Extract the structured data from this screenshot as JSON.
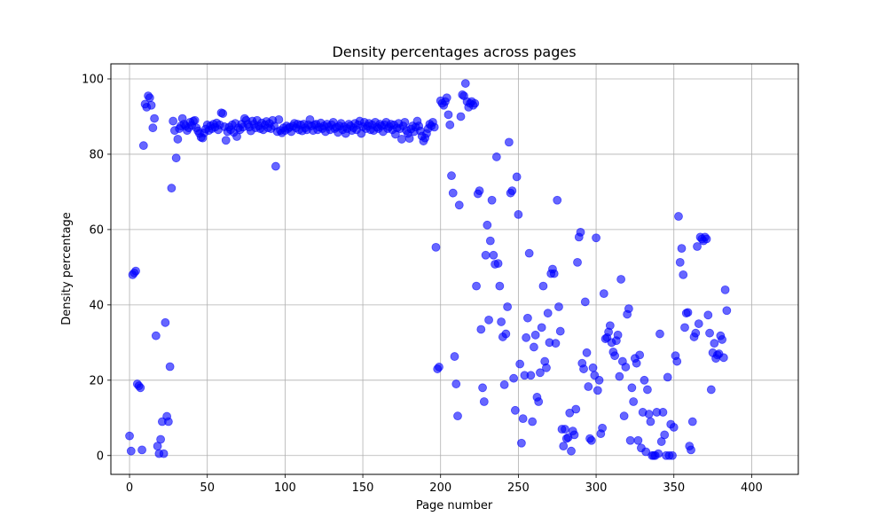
{
  "chart_data": {
    "type": "scatter",
    "title": "Density percentages across pages",
    "xlabel": "Page number",
    "ylabel": "Density percentage",
    "xlim": [
      -12,
      430
    ],
    "ylim": [
      -5,
      104
    ],
    "xticks": [
      0,
      50,
      100,
      150,
      200,
      250,
      300,
      350,
      400
    ],
    "yticks": [
      0,
      20,
      40,
      60,
      80,
      100
    ],
    "grid": true,
    "marker_color": "#0000ff",
    "marker_alpha": 0.6,
    "points": [
      [
        0,
        5.2
      ],
      [
        1,
        1.2
      ],
      [
        2,
        48
      ],
      [
        3,
        48.5
      ],
      [
        4,
        49
      ],
      [
        5,
        19
      ],
      [
        6,
        18.5
      ],
      [
        7,
        18
      ],
      [
        8,
        1.5
      ],
      [
        9,
        82.3
      ],
      [
        10,
        93.3
      ],
      [
        11,
        92.5
      ],
      [
        12,
        95.5
      ],
      [
        13,
        95
      ],
      [
        14,
        93
      ],
      [
        15,
        87
      ],
      [
        16,
        89.5
      ],
      [
        17,
        31.8
      ],
      [
        18,
        2.5
      ],
      [
        19,
        0.5
      ],
      [
        20,
        4.3
      ],
      [
        21,
        9
      ],
      [
        22,
        0.5
      ],
      [
        23,
        35.3
      ],
      [
        24,
        10.4
      ],
      [
        25,
        9
      ],
      [
        26,
        23.6
      ],
      [
        27,
        71
      ],
      [
        28,
        88.8
      ],
      [
        29,
        86.3
      ],
      [
        30,
        79
      ],
      [
        31,
        84
      ],
      [
        32,
        86.8
      ],
      [
        33,
        87.5
      ],
      [
        34,
        89.5
      ],
      [
        35,
        88
      ],
      [
        36,
        87.5
      ],
      [
        37,
        86.3
      ],
      [
        38,
        87
      ],
      [
        39,
        88.5
      ],
      [
        40,
        87.7
      ],
      [
        41,
        88.8
      ],
      [
        42,
        89
      ],
      [
        43,
        87
      ],
      [
        44,
        86.2
      ],
      [
        45,
        85.5
      ],
      [
        46,
        84.5
      ],
      [
        47,
        84.3
      ],
      [
        48,
        85.7
      ],
      [
        49,
        86.7
      ],
      [
        50,
        87.8
      ],
      [
        51,
        86.3
      ],
      [
        52,
        87.5
      ],
      [
        53,
        86.8
      ],
      [
        54,
        88
      ],
      [
        55,
        87.2
      ],
      [
        56,
        88.3
      ],
      [
        57,
        86.5
      ],
      [
        58,
        87.8
      ],
      [
        59,
        91
      ],
      [
        60,
        90.8
      ],
      [
        61,
        87.3
      ],
      [
        62,
        83.7
      ],
      [
        63,
        86
      ],
      [
        64,
        87.2
      ],
      [
        65,
        86.5
      ],
      [
        66,
        87.8
      ],
      [
        67,
        85.8
      ],
      [
        68,
        88.2
      ],
      [
        69,
        84.7
      ],
      [
        70,
        87
      ],
      [
        71,
        86.5
      ],
      [
        72,
        88
      ],
      [
        73,
        87.2
      ],
      [
        74,
        89.5
      ],
      [
        75,
        89
      ],
      [
        76,
        88
      ],
      [
        77,
        87.2
      ],
      [
        78,
        86.2
      ],
      [
        79,
        88.8
      ],
      [
        80,
        88
      ],
      [
        81,
        87
      ],
      [
        82,
        89
      ],
      [
        83,
        87.5
      ],
      [
        84,
        86.8
      ],
      [
        85,
        88.3
      ],
      [
        86,
        86.5
      ],
      [
        87,
        87.8
      ],
      [
        88,
        88.7
      ],
      [
        89,
        87
      ],
      [
        90,
        88.2
      ],
      [
        91,
        86.8
      ],
      [
        92,
        89
      ],
      [
        93,
        87.5
      ],
      [
        94,
        76.8
      ],
      [
        95,
        86
      ],
      [
        96,
        89.2
      ],
      [
        97,
        86.3
      ],
      [
        98,
        85.7
      ],
      [
        99,
        87
      ],
      [
        100,
        86.3
      ],
      [
        101,
        87.5
      ],
      [
        102,
        86.8
      ],
      [
        103,
        87.2
      ],
      [
        104,
        86
      ],
      [
        105,
        87.5
      ],
      [
        106,
        88.2
      ],
      [
        107,
        87
      ],
      [
        108,
        88
      ],
      [
        109,
        86.5
      ],
      [
        110,
        87.8
      ],
      [
        111,
        86.2
      ],
      [
        112,
        88
      ],
      [
        113,
        87
      ],
      [
        114,
        86.5
      ],
      [
        115,
        87.8
      ],
      [
        116,
        89.2
      ],
      [
        117,
        87.5
      ],
      [
        118,
        86.3
      ],
      [
        119,
        87.8
      ],
      [
        120,
        88
      ],
      [
        121,
        86.5
      ],
      [
        122,
        87.2
      ],
      [
        123,
        88.3
      ],
      [
        124,
        86.8
      ],
      [
        125,
        87.5
      ],
      [
        126,
        86
      ],
      [
        127,
        88
      ],
      [
        128,
        87.3
      ],
      [
        129,
        86.5
      ],
      [
        130,
        87.8
      ],
      [
        131,
        88.5
      ],
      [
        132,
        86.8
      ],
      [
        133,
        87.2
      ],
      [
        134,
        85.8
      ],
      [
        135,
        87.5
      ],
      [
        136,
        88.2
      ],
      [
        137,
        86.5
      ],
      [
        138,
        87.3
      ],
      [
        139,
        85.5
      ],
      [
        140,
        86.8
      ],
      [
        141,
        88
      ],
      [
        142,
        87.5
      ],
      [
        143,
        86.3
      ],
      [
        144,
        87
      ],
      [
        145,
        88.2
      ],
      [
        146,
        86.5
      ],
      [
        147,
        87.8
      ],
      [
        148,
        88.8
      ],
      [
        149,
        85.5
      ],
      [
        150,
        87.3
      ],
      [
        151,
        88.5
      ],
      [
        152,
        86.8
      ],
      [
        153,
        87.5
      ],
      [
        154,
        88.2
      ],
      [
        155,
        86.5
      ],
      [
        156,
        87.8
      ],
      [
        157,
        86.3
      ],
      [
        158,
        88.5
      ],
      [
        159,
        87.2
      ],
      [
        160,
        86.8
      ],
      [
        161,
        88
      ],
      [
        162,
        87.5
      ],
      [
        163,
        86
      ],
      [
        164,
        87.8
      ],
      [
        165,
        88.5
      ],
      [
        166,
        86.8
      ],
      [
        167,
        87.3
      ],
      [
        168,
        88
      ],
      [
        169,
        86.5
      ],
      [
        170,
        87.8
      ],
      [
        171,
        85.3
      ],
      [
        172,
        87
      ],
      [
        173,
        88.2
      ],
      [
        174,
        86.8
      ],
      [
        175,
        84
      ],
      [
        176,
        87.5
      ],
      [
        177,
        88.5
      ],
      [
        178,
        86.3
      ],
      [
        179,
        85.5
      ],
      [
        180,
        84.2
      ],
      [
        181,
        86.7
      ],
      [
        182,
        87.5
      ],
      [
        183,
        86
      ],
      [
        184,
        87.2
      ],
      [
        185,
        88.8
      ],
      [
        186,
        87.5
      ],
      [
        187,
        86.2
      ],
      [
        188,
        84.8
      ],
      [
        189,
        83.5
      ],
      [
        190,
        84.3
      ],
      [
        191,
        85.5
      ],
      [
        192,
        86.8
      ],
      [
        193,
        88
      ],
      [
        194,
        87.5
      ],
      [
        195,
        88.5
      ],
      [
        196,
        87.2
      ],
      [
        197,
        55.3
      ],
      [
        198,
        23
      ],
      [
        199,
        23.5
      ],
      [
        200,
        94.2
      ],
      [
        201,
        93.5
      ],
      [
        202,
        93
      ],
      [
        203,
        94
      ],
      [
        204,
        95
      ],
      [
        205,
        90.5
      ],
      [
        206,
        87.8
      ],
      [
        207,
        74.3
      ],
      [
        208,
        69.7
      ],
      [
        209,
        26.3
      ],
      [
        210,
        19
      ],
      [
        211,
        10.5
      ],
      [
        212,
        66.5
      ],
      [
        213,
        90
      ],
      [
        214,
        95.8
      ],
      [
        215,
        95.5
      ],
      [
        216,
        98.8
      ],
      [
        217,
        94
      ],
      [
        218,
        92.5
      ],
      [
        219,
        93.5
      ],
      [
        220,
        94
      ],
      [
        221,
        93
      ],
      [
        222,
        93.5
      ],
      [
        223,
        45
      ],
      [
        224,
        69.5
      ],
      [
        225,
        70.3
      ],
      [
        226,
        33.5
      ],
      [
        227,
        18
      ],
      [
        228,
        14.3
      ],
      [
        229,
        53.2
      ],
      [
        230,
        61.2
      ],
      [
        231,
        36
      ],
      [
        232,
        57
      ],
      [
        233,
        67.8
      ],
      [
        234,
        53.2
      ],
      [
        235,
        50.8
      ],
      [
        236,
        79.3
      ],
      [
        237,
        51
      ],
      [
        238,
        45
      ],
      [
        239,
        35.5
      ],
      [
        240,
        31.5
      ],
      [
        241,
        18.8
      ],
      [
        242,
        32.3
      ],
      [
        243,
        39.5
      ],
      [
        244,
        83.2
      ],
      [
        245,
        69.7
      ],
      [
        246,
        70.3
      ],
      [
        247,
        20.5
      ],
      [
        248,
        12
      ],
      [
        249,
        74
      ],
      [
        250,
        64
      ],
      [
        251,
        24.3
      ],
      [
        252,
        3.3
      ],
      [
        253,
        9.8
      ],
      [
        254,
        21.3
      ],
      [
        255,
        31.3
      ],
      [
        256,
        36.5
      ],
      [
        257,
        53.7
      ],
      [
        258,
        21.3
      ],
      [
        259,
        9
      ],
      [
        260,
        28.8
      ],
      [
        261,
        32
      ],
      [
        262,
        15.5
      ],
      [
        263,
        14.3
      ],
      [
        264,
        22
      ],
      [
        265,
        34
      ],
      [
        266,
        45
      ],
      [
        267,
        25
      ],
      [
        268,
        23.3
      ],
      [
        269,
        37.8
      ],
      [
        270,
        30
      ],
      [
        271,
        48.3
      ],
      [
        272,
        49.5
      ],
      [
        273,
        48.3
      ],
      [
        274,
        29.8
      ],
      [
        275,
        67.8
      ],
      [
        276,
        39.5
      ],
      [
        277,
        33
      ],
      [
        278,
        7
      ],
      [
        279,
        2.5
      ],
      [
        280,
        7
      ],
      [
        281,
        4.5
      ],
      [
        282,
        4.8
      ],
      [
        283,
        11.3
      ],
      [
        284,
        1.2
      ],
      [
        285,
        6.5
      ],
      [
        286,
        5.5
      ],
      [
        287,
        12.3
      ],
      [
        288,
        51.3
      ],
      [
        289,
        58
      ],
      [
        290,
        59.3
      ],
      [
        291,
        24.5
      ],
      [
        292,
        23
      ],
      [
        293,
        40.8
      ],
      [
        294,
        27.3
      ],
      [
        295,
        18.3
      ],
      [
        296,
        4.5
      ],
      [
        297,
        4
      ],
      [
        298,
        23.3
      ],
      [
        299,
        21.3
      ],
      [
        300,
        57.8
      ],
      [
        301,
        17.3
      ],
      [
        302,
        20
      ],
      [
        303,
        5.8
      ],
      [
        304,
        7.3
      ],
      [
        305,
        43
      ],
      [
        306,
        31
      ],
      [
        307,
        31.3
      ],
      [
        308,
        32.8
      ],
      [
        309,
        34.5
      ],
      [
        310,
        30
      ],
      [
        311,
        27.5
      ],
      [
        312,
        26.5
      ],
      [
        313,
        30.5
      ],
      [
        314,
        32
      ],
      [
        315,
        21
      ],
      [
        316,
        46.8
      ],
      [
        317,
        25
      ],
      [
        318,
        10.5
      ],
      [
        319,
        23.5
      ],
      [
        320,
        37.5
      ],
      [
        321,
        39
      ],
      [
        322,
        4
      ],
      [
        323,
        18
      ],
      [
        324,
        14.3
      ],
      [
        325,
        25.8
      ],
      [
        326,
        24.5
      ],
      [
        327,
        4
      ],
      [
        328,
        26.7
      ],
      [
        329,
        2
      ],
      [
        330,
        11.5
      ],
      [
        331,
        20
      ],
      [
        332,
        1
      ],
      [
        333,
        17.5
      ],
      [
        334,
        11
      ],
      [
        335,
        9
      ],
      [
        336,
        0
      ],
      [
        337,
        0
      ],
      [
        338,
        0
      ],
      [
        339,
        11.5
      ],
      [
        340,
        0.5
      ],
      [
        341,
        32.3
      ],
      [
        342,
        3.7
      ],
      [
        343,
        11.5
      ],
      [
        344,
        5.5
      ],
      [
        345,
        0
      ],
      [
        346,
        20.8
      ],
      [
        347,
        0
      ],
      [
        348,
        8.3
      ],
      [
        349,
        0
      ],
      [
        350,
        7.5
      ],
      [
        351,
        26.5
      ],
      [
        352,
        25
      ],
      [
        353,
        63.5
      ],
      [
        354,
        51.3
      ],
      [
        355,
        55
      ],
      [
        356,
        48
      ],
      [
        357,
        34
      ],
      [
        358,
        37.8
      ],
      [
        359,
        38
      ],
      [
        360,
        2.5
      ],
      [
        361,
        1.5
      ],
      [
        362,
        9
      ],
      [
        363,
        31.5
      ],
      [
        364,
        32.5
      ],
      [
        365,
        55.5
      ],
      [
        366,
        35
      ],
      [
        367,
        58
      ],
      [
        368,
        57.5
      ],
      [
        369,
        57
      ],
      [
        370,
        58
      ],
      [
        371,
        57.5
      ],
      [
        372,
        37.3
      ],
      [
        373,
        32.5
      ],
      [
        374,
        17.5
      ],
      [
        375,
        27.3
      ],
      [
        376,
        29.8
      ],
      [
        377,
        25.8
      ],
      [
        378,
        26.7
      ],
      [
        379,
        27
      ],
      [
        380,
        31.8
      ],
      [
        381,
        30.8
      ],
      [
        382,
        26
      ],
      [
        383,
        44
      ],
      [
        384,
        38.5
      ]
    ]
  }
}
